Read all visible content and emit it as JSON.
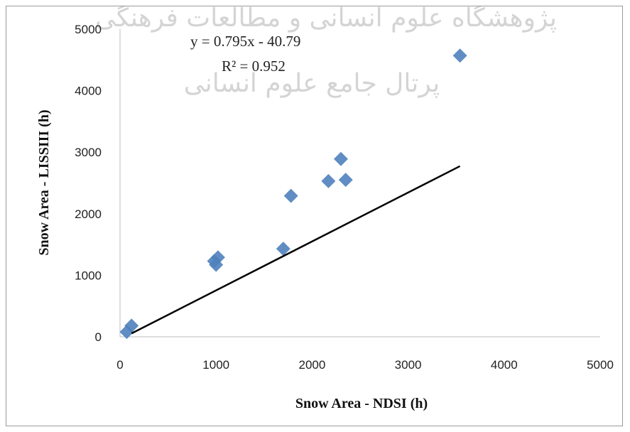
{
  "chart_data": {
    "type": "scatter",
    "title": "",
    "xlabel": "Snow Area - NDSI (h)",
    "ylabel": "Snow Area - LISSIII (h)",
    "xlim": [
      0,
      5000
    ],
    "ylim": [
      0,
      5000
    ],
    "xticks": [
      0,
      1000,
      2000,
      3000,
      4000,
      5000
    ],
    "yticks": [
      0,
      1000,
      2000,
      3000,
      4000,
      5000
    ],
    "grid": false,
    "marker_color": "#4f81bd",
    "trendline_color": "#000000",
    "points": [
      {
        "x": 70,
        "y": 80
      },
      {
        "x": 120,
        "y": 180
      },
      {
        "x": 980,
        "y": 1230
      },
      {
        "x": 1020,
        "y": 1290
      },
      {
        "x": 1000,
        "y": 1170
      },
      {
        "x": 1700,
        "y": 1430
      },
      {
        "x": 1780,
        "y": 2290
      },
      {
        "x": 2170,
        "y": 2530
      },
      {
        "x": 2300,
        "y": 2890
      },
      {
        "x": 2350,
        "y": 2550
      },
      {
        "x": 3540,
        "y": 4570
      }
    ],
    "trendline": {
      "slope": 0.795,
      "intercept": -40.79,
      "x_range": [
        120,
        3540
      ],
      "equation": "y = 0.795x - 40.79",
      "r_squared": "R² = 0.952"
    }
  },
  "watermark": {
    "line1": "پژوهشگاه علوم انسانی و مطالعات فرهنگی",
    "line2": "پرتال جامع علوم انسانی"
  }
}
